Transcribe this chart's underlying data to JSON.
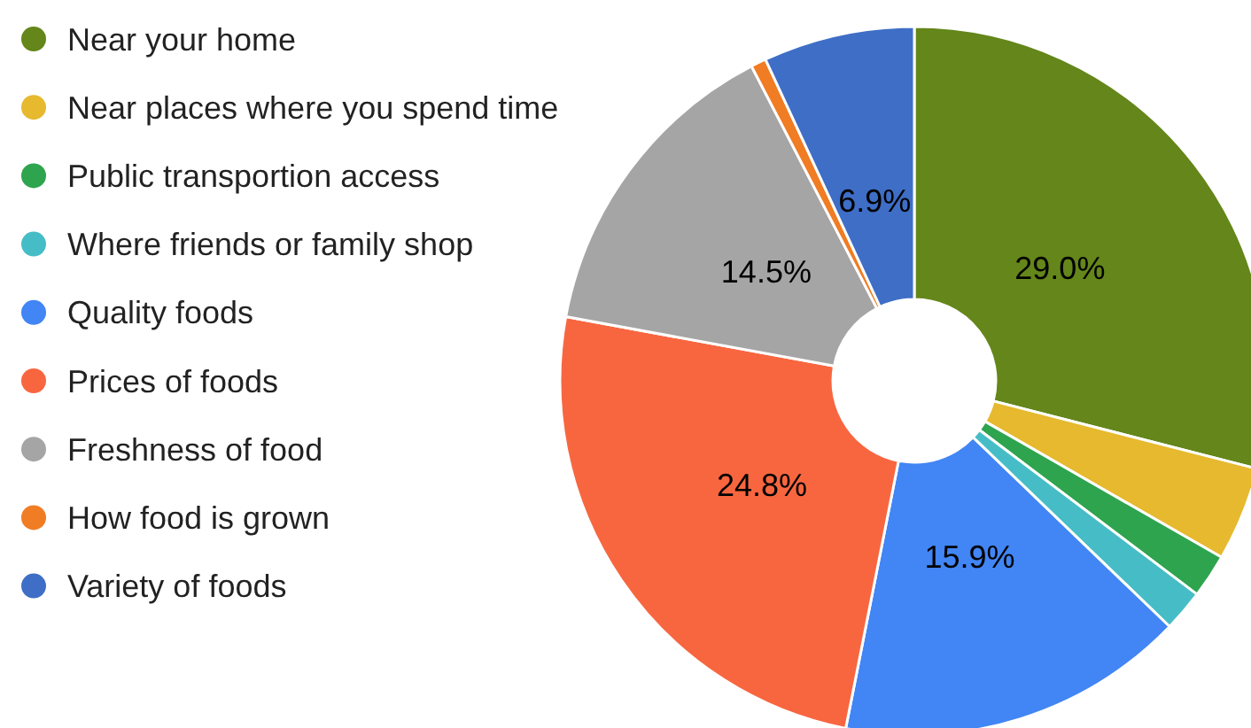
{
  "chart_data": {
    "type": "donut",
    "categories": [
      "Near your home",
      "Near places where you spend time",
      "Public transportion access",
      "Where friends or family shop",
      "Quality foods",
      "Prices of foods",
      "Freshness of food",
      "How food is grown",
      "Variety of foods"
    ],
    "values": [
      29.0,
      4.3,
      2.0,
      1.9,
      15.9,
      24.8,
      14.5,
      0.7,
      6.9
    ],
    "colors": [
      "#64861a",
      "#e6b92e",
      "#2ea44f",
      "#46bdc6",
      "#4285f4",
      "#f86640",
      "#a5a5a5",
      "#f07c24",
      "#3e6ec6"
    ],
    "value_labels": [
      "29.0%",
      null,
      null,
      null,
      "15.9%",
      "24.8%",
      "14.5%",
      null,
      "6.9%"
    ],
    "legend": "left"
  }
}
